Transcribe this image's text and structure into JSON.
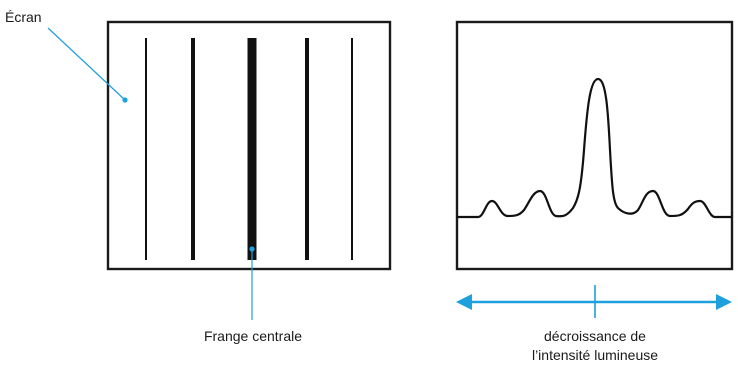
{
  "labels": {
    "screen": "Écran",
    "central_fringe": "Frange centrale",
    "intensity_line1": "décroissance de",
    "intensity_line2": "l’intensité lumineuse"
  },
  "colors": {
    "frame": "#1a1a1a",
    "fringe": "#111111",
    "curve": "#111111",
    "accent": "#1ea0dc"
  }
}
